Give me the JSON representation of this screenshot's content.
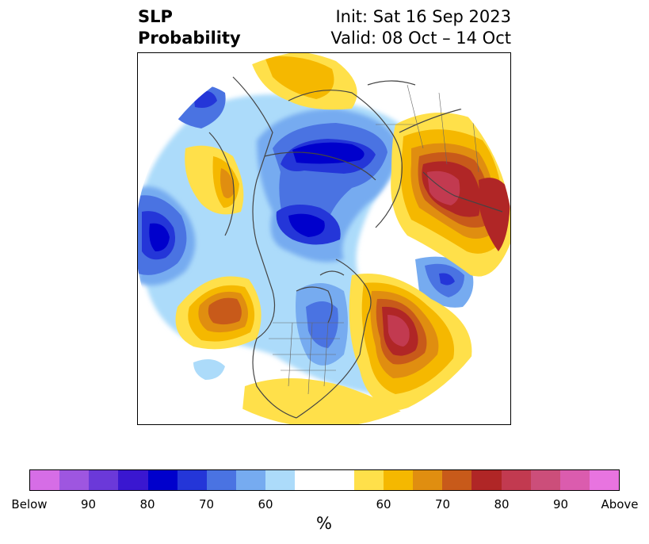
{
  "header": {
    "title_line1": "SLP",
    "title_line2": "Probability",
    "init": "Init: Sat 16 Sep 2023",
    "valid": "Valid: 08 Oct – 14 Oct"
  },
  "map": {
    "projection": "north-polar-stereographic",
    "regions_shown": [
      "North America",
      "Arctic",
      "Eurasia",
      "North Pacific",
      "North Atlantic"
    ]
  },
  "colorbar": {
    "colors": [
      "#d66de6",
      "#9e56e0",
      "#6b39d9",
      "#3a17d0",
      "#0000cc",
      "#2436d8",
      "#4a73e2",
      "#76abf0",
      "#acdbfa",
      "#ffffff",
      "#ffffff",
      "#ffe04a",
      "#f5b800",
      "#e08e10",
      "#c85a1a",
      "#b02626",
      "#c23a50",
      "#cc4e7a",
      "#db5cae",
      "#e874e0"
    ],
    "tick_labels": [
      {
        "text": "Below",
        "index": 0
      },
      {
        "text": "90",
        "index": 2
      },
      {
        "text": "80",
        "index": 4
      },
      {
        "text": "70",
        "index": 6
      },
      {
        "text": "60",
        "index": 8
      },
      {
        "text": "60",
        "index": 12
      },
      {
        "text": "70",
        "index": 14
      },
      {
        "text": "80",
        "index": 16
      },
      {
        "text": "90",
        "index": 18
      },
      {
        "text": "Above",
        "index": 20
      }
    ],
    "unit": "%"
  }
}
